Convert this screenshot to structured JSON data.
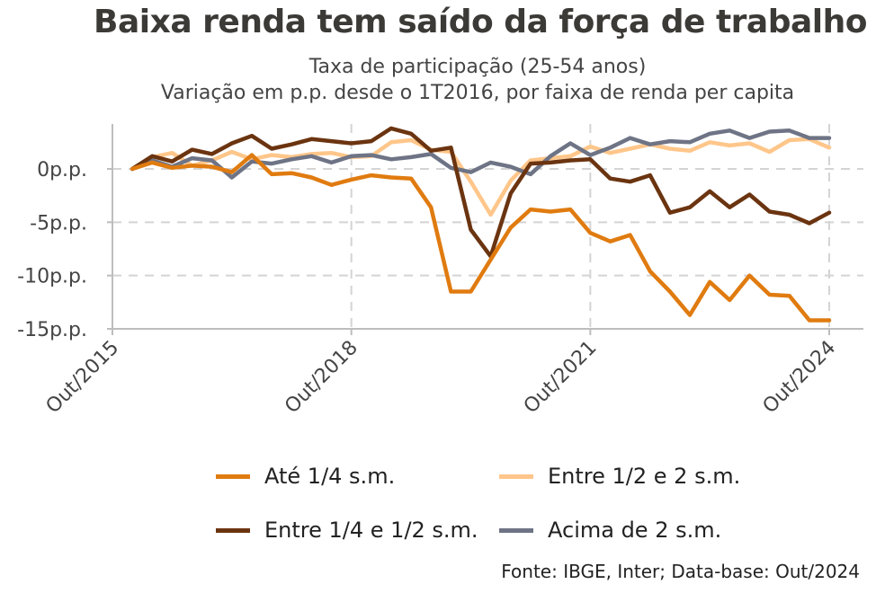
{
  "chart_data": {
    "type": "line",
    "title": "Baixa renda tem saído da força de trabalho",
    "subtitle_lines": [
      "Taxa de participação (25-54 anos)",
      "Variação em p.p. desde o 1T2016, por faixa de renda per capita"
    ],
    "xlabel": "",
    "ylabel": "",
    "x_tick_labels": [
      "Out/2015",
      "Out/2018",
      "Out/2021",
      "Out/2024"
    ],
    "x_tick_values": [
      2015.75,
      2018.75,
      2021.75,
      2024.75
    ],
    "y_tick_labels": [
      "0p.p.",
      "-5p.p.",
      "-10p.p.",
      "-15p.p."
    ],
    "y_tick_values": [
      0,
      -5,
      -10,
      -15
    ],
    "xlim": [
      2015.75,
      2024.75
    ],
    "ylim": [
      -15,
      3.5
    ],
    "grid": true,
    "legend_position": "bottom",
    "x": [
      2016.0,
      2016.25,
      2016.5,
      2016.75,
      2017.0,
      2017.25,
      2017.5,
      2017.75,
      2018.0,
      2018.25,
      2018.5,
      2018.75,
      2019.0,
      2019.25,
      2019.5,
      2019.75,
      2020.0,
      2020.25,
      2020.5,
      2020.75,
      2021.0,
      2021.25,
      2021.5,
      2021.75,
      2022.0,
      2022.25,
      2022.5,
      2022.75,
      2023.0,
      2023.25,
      2023.5,
      2023.75,
      2024.0,
      2024.25,
      2024.5,
      2024.75
    ],
    "series": [
      {
        "name": "Até 1/4 s.m.",
        "color": "#E07B10",
        "values": [
          0.0,
          0.6,
          0.1,
          0.3,
          0.2,
          -0.3,
          1.3,
          -0.5,
          -0.4,
          -0.8,
          -1.5,
          -1.0,
          -0.6,
          -0.8,
          -0.9,
          -3.6,
          -11.5,
          -11.5,
          -8.5,
          -5.5,
          -3.8,
          -4.0,
          -3.8,
          -6.0,
          -6.8,
          -6.2,
          -9.6,
          -11.5,
          -13.7,
          -10.6,
          -12.3,
          -10.0,
          -11.8,
          -11.9,
          -14.2,
          -14.2
        ]
      },
      {
        "name": "Entre 1/4 e 1/2 s.m.",
        "color": "#6B3410",
        "values": [
          0.0,
          1.2,
          0.7,
          1.8,
          1.4,
          2.4,
          3.1,
          1.9,
          2.3,
          2.8,
          2.6,
          2.4,
          2.6,
          3.8,
          3.3,
          1.7,
          2.0,
          -5.7,
          -8.2,
          -2.3,
          0.5,
          0.6,
          0.8,
          0.9,
          -0.9,
          -1.2,
          -0.6,
          -4.1,
          -3.6,
          -2.1,
          -3.6,
          -2.4,
          -4.0,
          -4.3,
          -5.1,
          -4.1
        ]
      },
      {
        "name": "Entre 1/2 e 2 s.m.",
        "color": "#FFC68A",
        "values": [
          0.0,
          1.1,
          1.5,
          0.3,
          0.8,
          1.6,
          0.9,
          1.3,
          1.1,
          1.4,
          1.5,
          1.1,
          1.2,
          2.5,
          2.7,
          1.8,
          1.6,
          -1.2,
          -4.3,
          -1.1,
          0.8,
          1.0,
          1.2,
          2.1,
          1.5,
          1.9,
          2.3,
          1.9,
          1.7,
          2.5,
          2.2,
          2.4,
          1.6,
          2.7,
          2.8,
          2.0
        ]
      },
      {
        "name": "Acima de 2 s.m.",
        "color": "#6E7485",
        "values": [
          0.0,
          0.8,
          0.2,
          1.0,
          0.8,
          -0.8,
          0.7,
          0.5,
          0.9,
          1.2,
          0.6,
          1.2,
          1.3,
          0.9,
          1.1,
          1.4,
          0.1,
          -0.3,
          0.6,
          0.2,
          -0.5,
          1.2,
          2.4,
          1.3,
          2.0,
          2.9,
          2.3,
          2.6,
          2.5,
          3.3,
          3.6,
          2.9,
          3.5,
          3.6,
          2.9,
          2.9
        ]
      }
    ]
  },
  "legend_order": [
    0,
    2,
    1,
    3
  ],
  "source": "Fonte: IBGE, Inter; Data-base: Out/2024"
}
